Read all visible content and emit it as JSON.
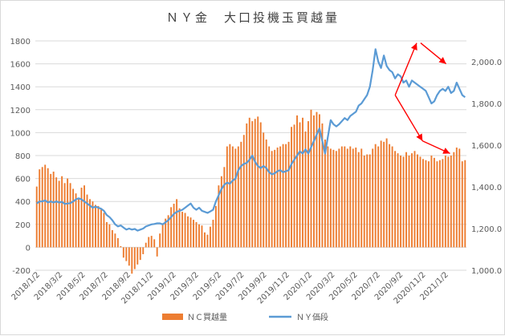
{
  "chart_data": {
    "type": "bar+line",
    "title": "ＮＹ金　大口投機玉買越量",
    "x_ticks": [
      "2018/1/2",
      "2018/3/2",
      "2018/5/2",
      "2018/7/2",
      "2018/9/2",
      "2018/11/2",
      "2019/1/2",
      "2019/3/2",
      "2019/5/2",
      "2019/7/2",
      "2019/9/2",
      "2019/11/2",
      "2020/1/2",
      "2020/3/2",
      "2020/5/2",
      "2020/7/2",
      "2020/9/2",
      "2020/11/2",
      "2021/1/2"
    ],
    "y_left": {
      "min": -200,
      "max": 1800,
      "ticks": [
        -200,
        0,
        200,
        400,
        600,
        800,
        1000,
        1200,
        1400,
        1600,
        1800
      ]
    },
    "y_right": {
      "min": 1000,
      "max": 2100,
      "ticks": [
        "1,000.0",
        "1,200.0",
        "1,400.0",
        "1,600.0",
        "1,800.0",
        "2,000.0"
      ]
    },
    "grid": true,
    "legend_position": "bottom",
    "series": [
      {
        "name": "ＮＣ買越量",
        "type": "bar",
        "axis": "left",
        "color": "#ED7D31",
        "values": [
          530,
          680,
          700,
          720,
          690,
          640,
          660,
          610,
          580,
          620,
          560,
          600,
          560,
          510,
          470,
          430,
          520,
          540,
          460,
          420,
          400,
          370,
          360,
          330,
          300,
          220,
          200,
          150,
          120,
          80,
          10,
          -90,
          -120,
          -160,
          -230,
          -190,
          -150,
          -110,
          -60,
          40,
          90,
          100,
          70,
          -80,
          120,
          210,
          250,
          280,
          350,
          380,
          420,
          340,
          310,
          300,
          270,
          260,
          240,
          220,
          200,
          190,
          130,
          110,
          180,
          240,
          360,
          540,
          620,
          700,
          880,
          900,
          880,
          860,
          880,
          920,
          980,
          1080,
          1130,
          1100,
          1120,
          1140,
          1090,
          1000,
          940,
          880,
          840,
          850,
          870,
          880,
          900,
          900,
          920,
          1050,
          1070,
          1150,
          1090,
          1130,
          1010,
          1100,
          1200,
          1150,
          1180,
          1160,
          1080,
          940,
          880,
          860,
          850,
          840,
          860,
          880,
          880,
          860,
          880,
          860,
          870,
          830,
          860,
          800,
          810,
          810,
          860,
          900,
          880,
          930,
          920,
          950,
          900,
          880,
          840,
          820,
          800,
          790,
          830,
          800,
          820,
          840,
          810,
          790,
          770,
          760,
          750,
          800,
          780,
          750,
          760,
          770,
          800,
          790,
          800,
          830,
          870,
          860,
          750,
          760
        ]
      },
      {
        "name": "ＮＹ価段",
        "type": "line",
        "axis": "right",
        "color": "#5B9BD5",
        "values": [
          1320,
          1330,
          1330,
          1335,
          1325,
          1330,
          1325,
          1330,
          1325,
          1328,
          1318,
          1320,
          1322,
          1330,
          1340,
          1345,
          1340,
          1330,
          1320,
          1310,
          1300,
          1305,
          1300,
          1295,
          1285,
          1265,
          1255,
          1240,
          1220,
          1210,
          1215,
          1205,
          1195,
          1200,
          1195,
          1198,
          1190,
          1195,
          1200,
          1210,
          1215,
          1220,
          1222,
          1225,
          1225,
          1220,
          1230,
          1240,
          1255,
          1270,
          1280,
          1285,
          1290,
          1300,
          1310,
          1320,
          1300,
          1290,
          1300,
          1285,
          1280,
          1275,
          1282,
          1290,
          1330,
          1360,
          1390,
          1410,
          1420,
          1415,
          1430,
          1440,
          1480,
          1500,
          1510,
          1515,
          1530,
          1550,
          1520,
          1500,
          1490,
          1500,
          1490,
          1470,
          1460,
          1465,
          1475,
          1480,
          1470,
          1475,
          1480,
          1510,
          1530,
          1550,
          1570,
          1560,
          1580,
          1560,
          1590,
          1620,
          1650,
          1680,
          1620,
          1560,
          1640,
          1720,
          1700,
          1690,
          1700,
          1715,
          1730,
          1720,
          1740,
          1750,
          1760,
          1790,
          1800,
          1820,
          1840,
          1880,
          1960,
          2060,
          2000,
          1970,
          2030,
          1980,
          1960,
          1950,
          1920,
          1940,
          1930,
          1900,
          1910,
          1880,
          1910,
          1900,
          1890,
          1880,
          1870,
          1860,
          1830,
          1800,
          1810,
          1840,
          1860,
          1870,
          1860,
          1880,
          1850,
          1860,
          1900,
          1870,
          1840,
          1830
        ]
      }
    ],
    "annotations": [
      {
        "type": "arrow",
        "from": [
          1270,
          1840
        ],
        "to": [
          1325,
          2090
        ],
        "color": "#FF0000"
      },
      {
        "type": "arrow",
        "from": [
          1270,
          1840
        ],
        "to": [
          1340,
          1620
        ],
        "color": "#FF0000"
      },
      {
        "type": "arrow",
        "from": [
          1335,
          2090
        ],
        "to": [
          1400,
          1990
        ],
        "color": "#FF0000"
      },
      {
        "type": "arrow",
        "from": [
          1340,
          1620
        ],
        "to": [
          1410,
          1560
        ],
        "color": "#FF0000"
      }
    ]
  }
}
